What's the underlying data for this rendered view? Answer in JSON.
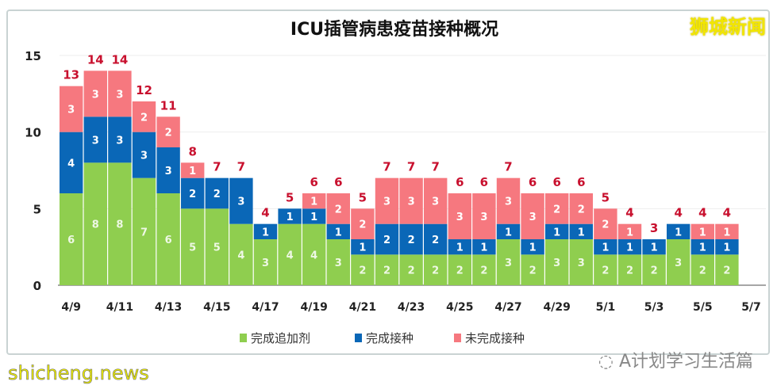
{
  "brand": "狮城新闻",
  "watermark": "shicheng.news",
  "wechat_account": "A计划学习生活篇",
  "colors": {
    "green": "#8fce4f",
    "blue": "#0a67b7",
    "pink": "#f6787f",
    "total_label": "#c8102e"
  },
  "chart_data": {
    "type": "bar",
    "stacked": true,
    "title": "ICU插管病患疫苗接种概况",
    "categories": [
      "4/9",
      "4/10",
      "4/11",
      "4/12",
      "4/13",
      "4/14",
      "4/15",
      "4/16",
      "4/17",
      "4/18",
      "4/19",
      "4/20",
      "4/21",
      "4/22",
      "4/23",
      "4/24",
      "4/25",
      "4/26",
      "4/27",
      "4/28",
      "4/29",
      "4/30",
      "5/1",
      "5/2",
      "5/3",
      "5/4",
      "5/5",
      "5/6"
    ],
    "x_tick_labels": [
      "4/9",
      "4/11",
      "4/13",
      "4/15",
      "4/17",
      "4/19",
      "4/21",
      "4/23",
      "4/25",
      "4/27",
      "4/29",
      "5/1",
      "5/3",
      "5/5",
      "5/7"
    ],
    "series": [
      {
        "name": "完成追加剂",
        "color": "#8fce4f",
        "values": [
          6,
          8,
          8,
          7,
          6,
          5,
          5,
          4,
          3,
          4,
          4,
          3,
          2,
          2,
          2,
          2,
          2,
          2,
          3,
          2,
          3,
          3,
          2,
          2,
          2,
          3,
          2,
          2
        ]
      },
      {
        "name": "完成接种",
        "color": "#0a67b7",
        "values": [
          4,
          3,
          3,
          3,
          3,
          2,
          2,
          3,
          1,
          1,
          1,
          1,
          1,
          2,
          2,
          2,
          1,
          1,
          1,
          1,
          1,
          1,
          1,
          1,
          1,
          1,
          1,
          1
        ]
      },
      {
        "name": "未完成接种",
        "color": "#f6787f",
        "values": [
          3,
          3,
          3,
          2,
          2,
          1,
          0,
          0,
          0,
          0,
          1,
          2,
          2,
          3,
          3,
          3,
          3,
          3,
          3,
          3,
          2,
          2,
          2,
          1,
          0,
          0,
          1,
          1
        ]
      }
    ],
    "totals": [
      13,
      14,
      14,
      12,
      11,
      8,
      7,
      7,
      4,
      5,
      6,
      6,
      5,
      7,
      7,
      7,
      6,
      6,
      7,
      6,
      6,
      6,
      5,
      4,
      3,
      4,
      4,
      4
    ],
    "y_ticks": [
      0,
      5,
      10,
      15
    ],
    "ylim": [
      0,
      15
    ],
    "grid": true,
    "legend_position": "bottom"
  }
}
